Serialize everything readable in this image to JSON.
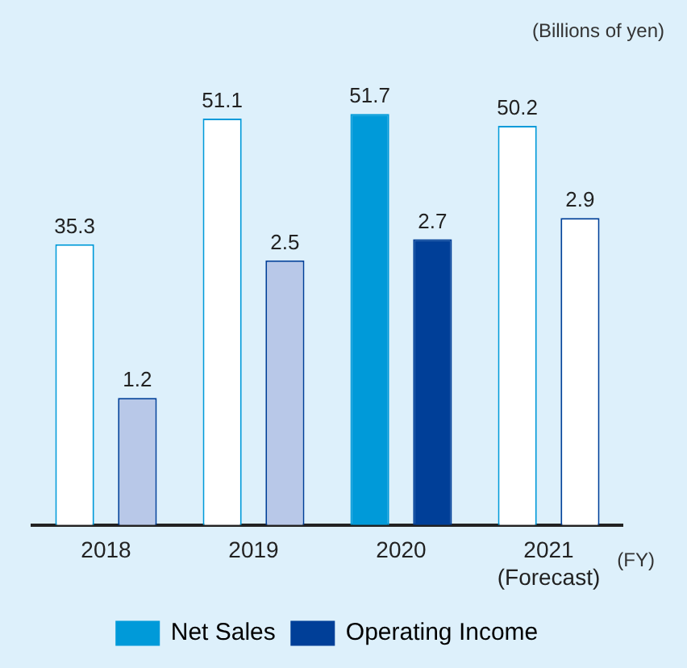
{
  "chart_data": {
    "type": "bar",
    "categories": [
      "2018",
      "2019",
      "2020",
      "2021\n(Forecast)"
    ],
    "series": [
      {
        "name": "Net Sales",
        "color": "#009ad9",
        "colors": [
          "#ffffff",
          "#ffffff",
          "#009ad9",
          "#ffffff"
        ],
        "values": [
          35.3,
          51.1,
          51.7,
          50.2
        ]
      },
      {
        "name": "Operating Income",
        "color": "#003f98",
        "colors": [
          "#b8c8e8",
          "#b8c8e8",
          "#003f98",
          "#ffffff"
        ],
        "values": [
          1.2,
          2.5,
          2.7,
          2.9
        ],
        "axis": "y2"
      }
    ],
    "data_labels": true,
    "legend": "bottom",
    "annotations": [
      "(Billions of yen)",
      "(FY)"
    ]
  }
}
